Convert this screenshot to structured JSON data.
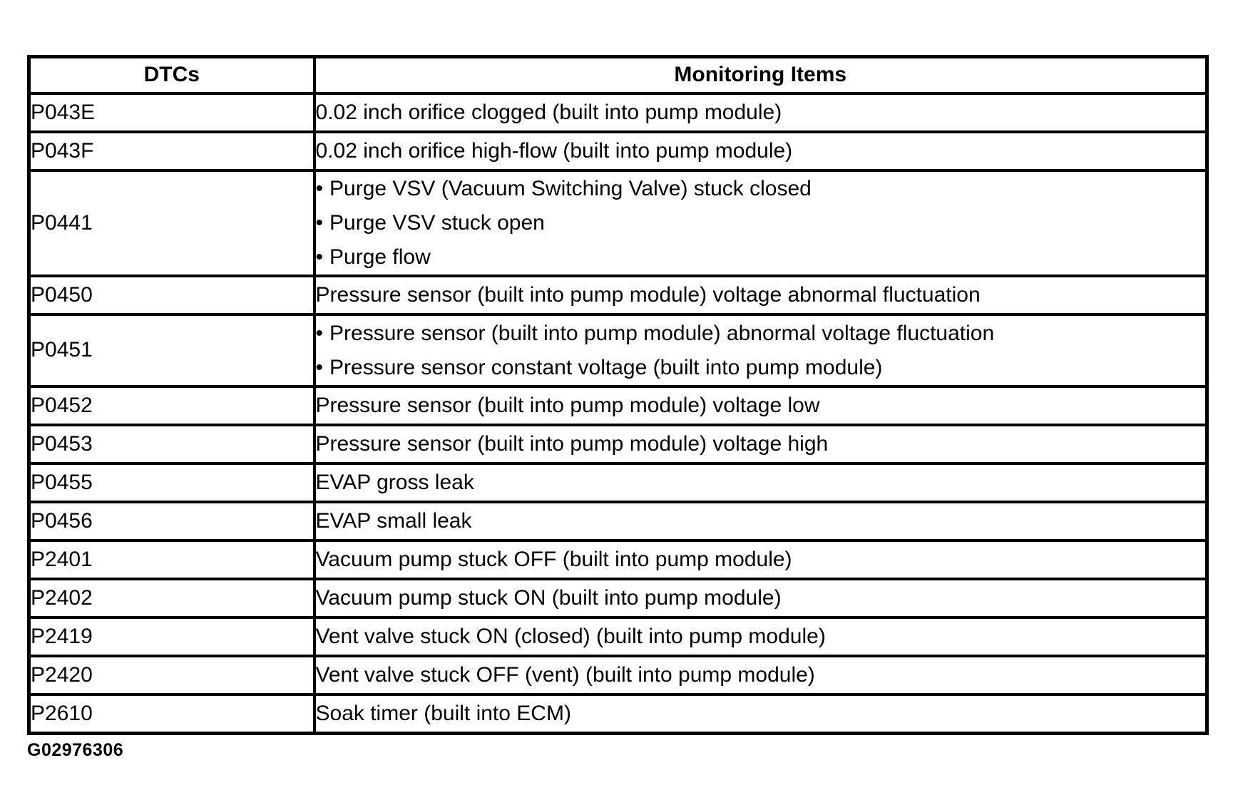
{
  "table": {
    "headers": {
      "dtcs": "DTCs",
      "monitoring": "Monitoring Items"
    },
    "bullet_glyph": "•",
    "rows": [
      {
        "dtc": "P043E",
        "text": "0.02 inch orifice clogged (built into pump module)"
      },
      {
        "dtc": "P043F",
        "text": "0.02 inch orifice high-flow (built into pump module)"
      },
      {
        "dtc": "P0441",
        "items": [
          "Purge VSV (Vacuum Switching Valve) stuck closed",
          "Purge VSV stuck open",
          "Purge flow"
        ]
      },
      {
        "dtc": "P0450",
        "text": "Pressure sensor (built into pump module) voltage abnormal fluctuation"
      },
      {
        "dtc": "P0451",
        "items": [
          "Pressure sensor (built into pump module) abnormal voltage fluctuation",
          "Pressure sensor constant voltage (built into pump module)"
        ]
      },
      {
        "dtc": "P0452",
        "text": "Pressure sensor (built into pump module) voltage low"
      },
      {
        "dtc": "P0453",
        "text": "Pressure sensor (built into pump module) voltage high"
      },
      {
        "dtc": "P0455",
        "text": "EVAP gross leak"
      },
      {
        "dtc": "P0456",
        "text": "EVAP small leak"
      },
      {
        "dtc": "P2401",
        "text": "Vacuum pump stuck OFF (built into pump module)"
      },
      {
        "dtc": "P2402",
        "text": "Vacuum pump stuck ON (built into pump module)"
      },
      {
        "dtc": "P2419",
        "text": "Vent valve stuck ON (closed) (built into pump module)"
      },
      {
        "dtc": "P2420",
        "text": "Vent valve stuck OFF (vent) (built into pump module)"
      },
      {
        "dtc": "P2610",
        "text": "Soak timer (built into ECM)"
      }
    ],
    "footer_code": "G02976306"
  },
  "colors": {
    "border": "#000000",
    "text": "#000000",
    "background": "#ffffff"
  }
}
